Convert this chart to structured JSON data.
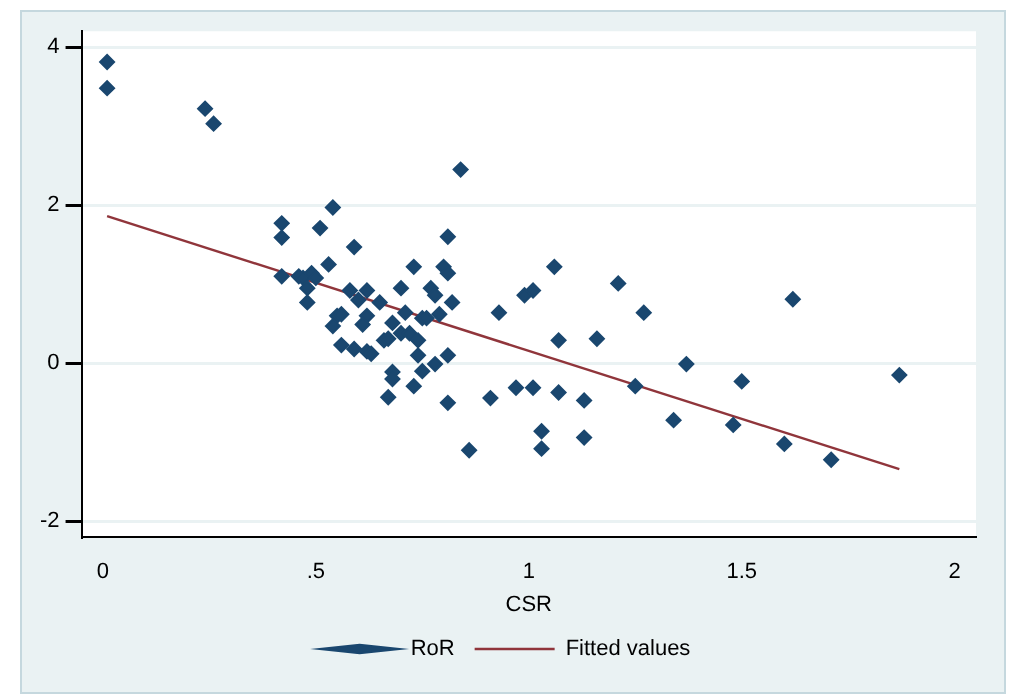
{
  "chart_data": {
    "type": "scatter",
    "xlabel": "CSR",
    "legend": "bottom",
    "grid": "y",
    "marker": "diamond",
    "xlim": [
      -0.05,
      2.05
    ],
    "ylim": [
      -2.2,
      4.2
    ],
    "xticks": [
      0,
      {
        "value": 0.5,
        "label": ".5"
      },
      1,
      {
        "value": 1.5,
        "label": "1.5"
      },
      2
    ],
    "yticks": [
      -2,
      0,
      2,
      4
    ],
    "series": [
      {
        "name": "RoR",
        "color": "#1a476f",
        "x": [
          0.01,
          0.01,
          0.24,
          0.26,
          0.84,
          0.54,
          0.42,
          0.42,
          0.51,
          0.59,
          0.81,
          0.53,
          0.42,
          0.46,
          0.47,
          0.49,
          0.5,
          0.48,
          0.48,
          0.58,
          0.6,
          0.62,
          0.65,
          0.7,
          0.73,
          0.8,
          0.81,
          0.77,
          0.78,
          0.82,
          0.79,
          0.55,
          0.56,
          0.54,
          0.62,
          0.61,
          0.68,
          0.71,
          0.75,
          0.76,
          0.7,
          0.72,
          0.74,
          0.56,
          0.59,
          0.62,
          0.63,
          0.66,
          0.67,
          0.81,
          0.74,
          0.68,
          0.68,
          0.78,
          0.75,
          0.73,
          0.67,
          0.81,
          0.86,
          0.91,
          0.93,
          0.99,
          1.01,
          1.06,
          0.97,
          1.01,
          1.07,
          1.07,
          1.13,
          1.03,
          1.03,
          1.13,
          1.21,
          1.27,
          1.16,
          1.62,
          1.37,
          1.5,
          1.87,
          1.25,
          1.34,
          1.48,
          1.6,
          1.71
        ],
        "values": [
          3.81,
          3.48,
          3.22,
          3.03,
          2.45,
          1.97,
          1.77,
          1.59,
          1.71,
          1.47,
          1.6,
          1.25,
          1.1,
          1.1,
          1.08,
          1.14,
          1.08,
          0.95,
          0.77,
          0.92,
          0.8,
          0.92,
          0.77,
          0.95,
          1.22,
          1.22,
          1.14,
          0.95,
          0.86,
          0.77,
          0.62,
          0.6,
          0.62,
          0.47,
          0.6,
          0.49,
          0.51,
          0.64,
          0.57,
          0.57,
          0.38,
          0.38,
          0.29,
          0.23,
          0.18,
          0.15,
          0.12,
          0.29,
          0.31,
          0.1,
          0.1,
          -0.11,
          -0.2,
          -0.01,
          -0.1,
          -0.29,
          -0.43,
          -0.5,
          -1.1,
          -0.44,
          0.64,
          0.86,
          0.92,
          1.22,
          -0.31,
          -0.31,
          0.29,
          -0.37,
          -0.47,
          -0.86,
          -1.08,
          -0.94,
          1.01,
          0.64,
          0.31,
          0.81,
          -0.01,
          -0.23,
          -0.15,
          -0.29,
          -0.72,
          -0.78,
          -1.02,
          -1.22
        ]
      },
      {
        "name": "Fitted values",
        "type": "line",
        "marker": "none",
        "color": "#90353b",
        "x": [
          0.01,
          1.87
        ],
        "values": [
          1.86,
          -1.34
        ]
      }
    ]
  }
}
